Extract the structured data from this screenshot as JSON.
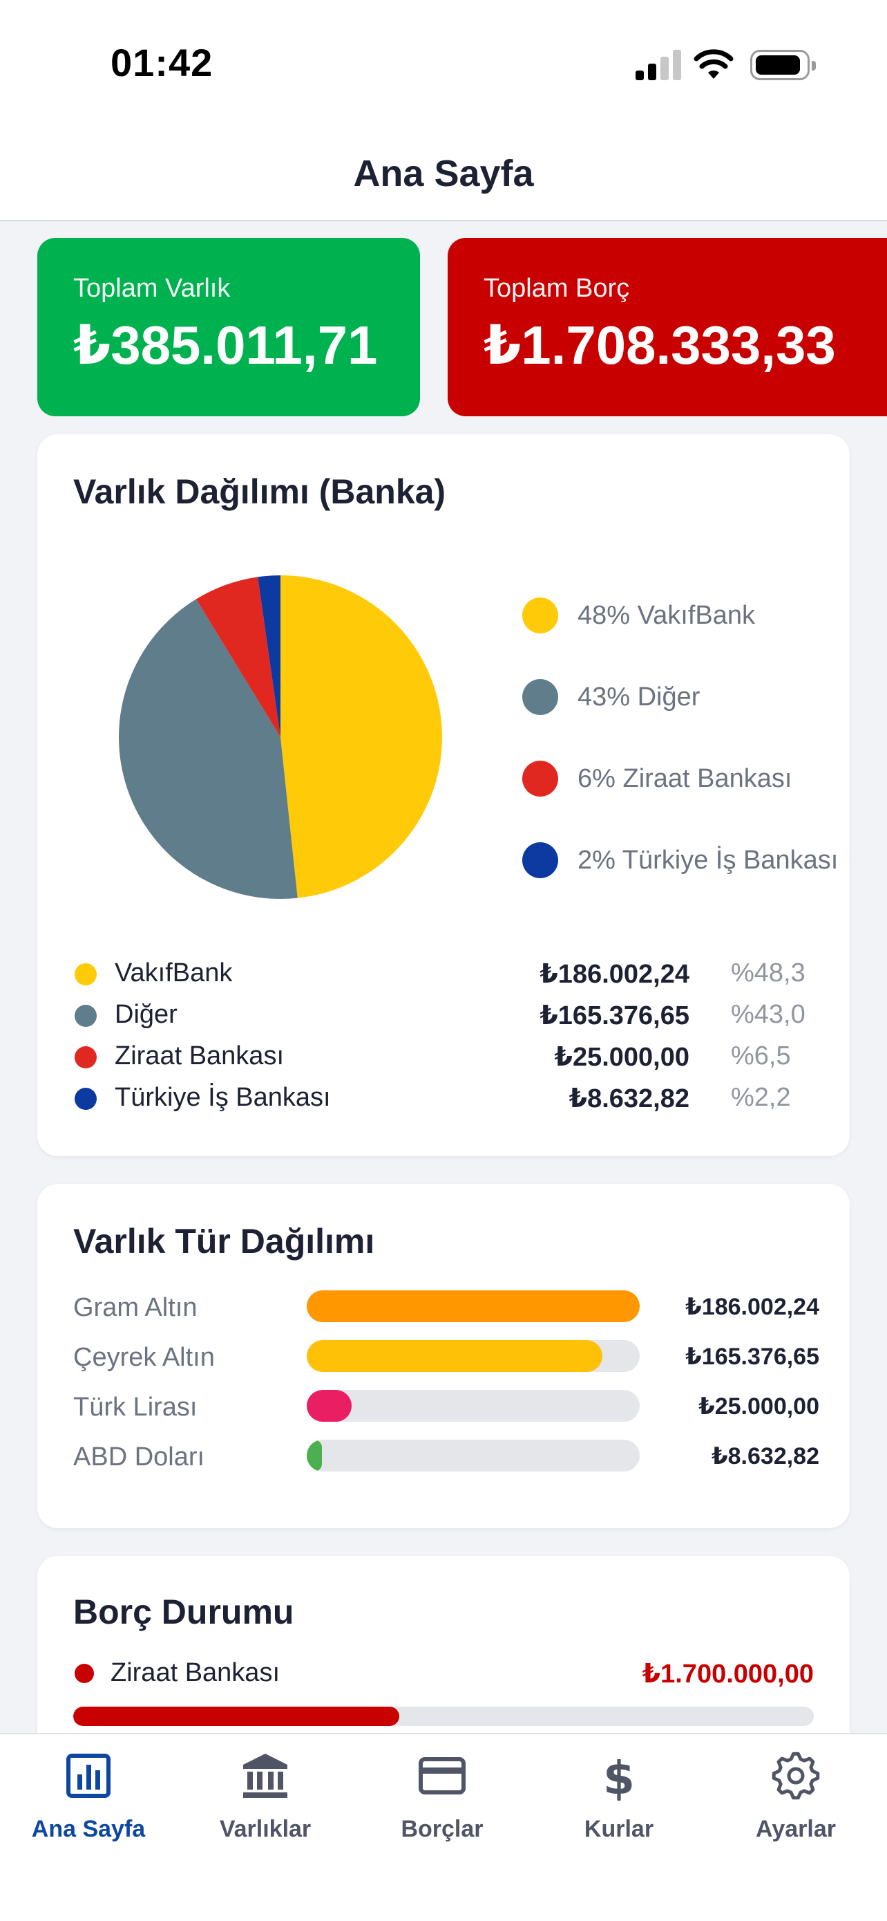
{
  "status_bar": {
    "time": "01:42"
  },
  "header": {
    "title": "Ana Sayfa"
  },
  "summary": {
    "total_assets": {
      "label": "Toplam Varlık",
      "value": "₺385.011,71",
      "color": "#00b14f"
    },
    "total_debt": {
      "label": "Toplam Borç",
      "value": "₺1.708.333,33",
      "color": "#c80000"
    }
  },
  "bank_distribution": {
    "title": "Varlık Dağılımı (Banka)",
    "legend": [
      {
        "label": "48% VakıfBank",
        "color": "#ffca08"
      },
      {
        "label": "43% Diğer",
        "color": "#607d8b"
      },
      {
        "label": "6% Ziraat Bankası",
        "color": "#e02820"
      },
      {
        "label": "2% Türkiye İş Bankası",
        "color": "#0d3aa0"
      }
    ],
    "rows": [
      {
        "name": "VakıfBank",
        "amount": "₺186.002,24",
        "percent": "%48,3",
        "color": "#ffca08"
      },
      {
        "name": "Diğer",
        "amount": "₺165.376,65",
        "percent": "%43,0",
        "color": "#607d8b"
      },
      {
        "name": "Ziraat Bankası",
        "amount": "₺25.000,00",
        "percent": "%6,5",
        "color": "#e02820"
      },
      {
        "name": "Türkiye İş Bankası",
        "amount": "₺8.632,82",
        "percent": "%2,2",
        "color": "#0d3aa0"
      }
    ]
  },
  "chart_data": {
    "type": "pie",
    "categories": [
      "VakıfBank",
      "Diğer",
      "Ziraat Bankası",
      "Türkiye İş Bankası"
    ],
    "values": [
      186002.24,
      165376.65,
      25000.0,
      8632.82
    ],
    "colors": [
      "#ffca08",
      "#607d8b",
      "#e02820",
      "#0d3aa0"
    ],
    "legend_position": "right"
  },
  "type_distribution": {
    "title": "Varlık Tür Dağılımı",
    "rows": [
      {
        "label": "Gram Altın",
        "value": "₺186.002,24",
        "fraction": 1.0,
        "color": "#ff9800"
      },
      {
        "label": "Çeyrek Altın",
        "value": "₺165.376,65",
        "fraction": 0.889,
        "color": "#ffc107"
      },
      {
        "label": "Türk Lirası",
        "value": "₺25.000,00",
        "fraction": 0.134,
        "color": "#e91e63"
      },
      {
        "label": "ABD Doları",
        "value": "₺8.632,82",
        "fraction": 0.046,
        "color": "#4caf50"
      }
    ]
  },
  "debt_status": {
    "title": "Borç Durumu",
    "rows": [
      {
        "name": "Ziraat Bankası",
        "amount": "₺1.700.000,00",
        "fraction": 0.44,
        "color": "#c80000"
      }
    ]
  },
  "tabbar": {
    "tabs": [
      {
        "label": "Ana Sayfa",
        "icon": "chart-bar-icon",
        "active": true
      },
      {
        "label": "Varlıklar",
        "icon": "bank-icon",
        "active": false
      },
      {
        "label": "Borçlar",
        "icon": "credit-card-icon",
        "active": false
      },
      {
        "label": "Kurlar",
        "icon": "dollar-icon",
        "active": false
      },
      {
        "label": "Ayarlar",
        "icon": "gear-icon",
        "active": false
      }
    ]
  }
}
